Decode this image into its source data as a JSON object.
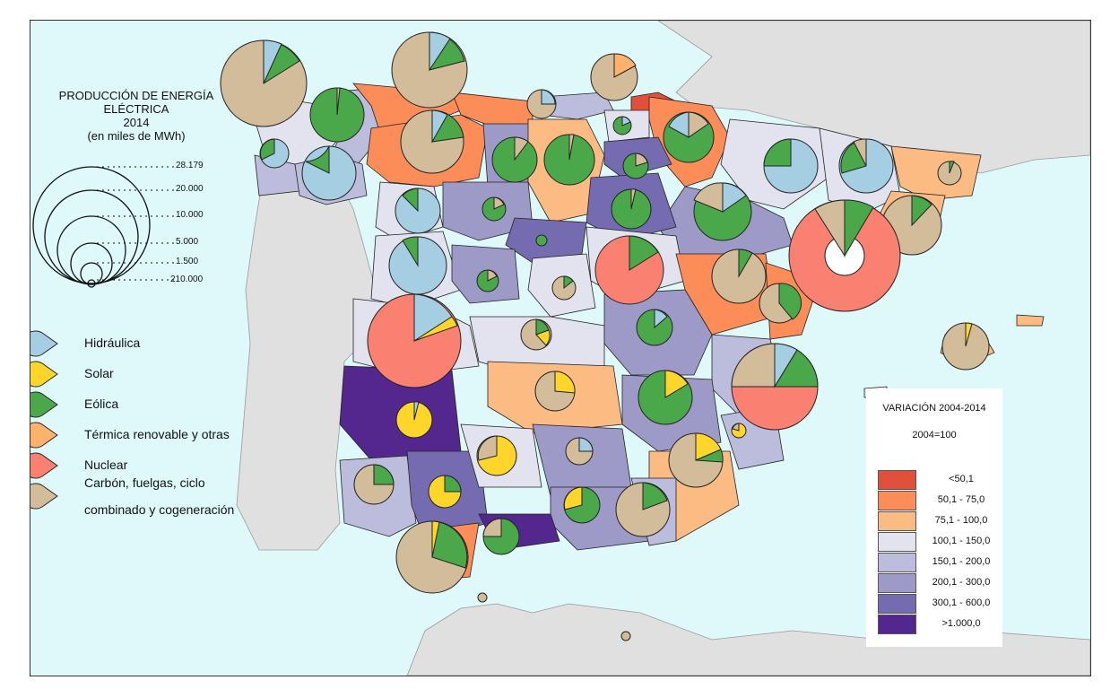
{
  "title": {
    "line1": "PRODUCCIÓN DE ENERGÍA",
    "line2": "ELÉCTRICA",
    "line3": "2014",
    "line4": "(en miles de MWh)"
  },
  "scale_values": [
    "28.179",
    "20.000",
    "10.000",
    "5.000",
    "1.500",
    "210.000"
  ],
  "energy_legend": [
    {
      "label": "Hidráulica",
      "color": "#a6cee3"
    },
    {
      "label": "Solar",
      "color": "#fdd52b"
    },
    {
      "label": "Eólica",
      "color": "#4aa84a"
    },
    {
      "label": "Térmica renovable y otras",
      "color": "#fdb26b"
    },
    {
      "label": "Nuclear",
      "color": "#fa8072"
    },
    {
      "label": "Carbón, fuelgas, ciclo",
      "color": "#d3bc9a"
    }
  ],
  "energy_legend_extra": "combinado y cogeneración",
  "variation_legend": {
    "title": "VARIACIÓN 2004-2014",
    "subtitle": "2004=100",
    "classes": [
      {
        "label": "<50,1",
        "color": "#e1503a"
      },
      {
        "label": "50,1 - 75,0",
        "color": "#fc8d59"
      },
      {
        "label": "75,1 - 100,0",
        "color": "#fdbb84"
      },
      {
        "label": "100,1 - 150,0",
        "color": "#e3e3f0"
      },
      {
        "label": "150,1 - 200,0",
        "color": "#bcbddc"
      },
      {
        "label": "200,1 - 300,0",
        "color": "#9e9ac8"
      },
      {
        "label": "300,1 - 600,0",
        "color": "#756bb1"
      },
      {
        "label": ">1.000,0",
        "color": "#54278f"
      }
    ]
  },
  "colors": {
    "sea": "#dff9fb",
    "land_other": "#e0e0e0",
    "border": "#222222"
  }
}
